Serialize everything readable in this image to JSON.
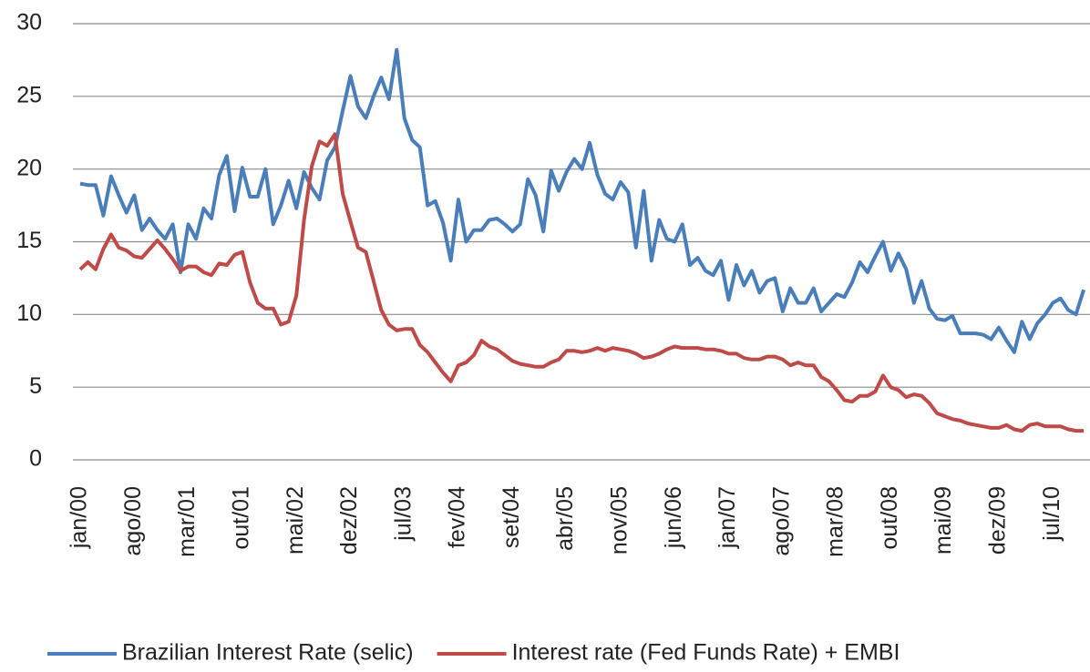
{
  "chart_data": {
    "type": "line",
    "categories": [
      "jan/00",
      null,
      null,
      null,
      null,
      null,
      null,
      "ago/00",
      null,
      null,
      null,
      null,
      null,
      null,
      "mar/01",
      null,
      null,
      null,
      null,
      null,
      null,
      "out/01",
      null,
      null,
      null,
      null,
      null,
      null,
      "mai/02",
      null,
      null,
      null,
      null,
      null,
      null,
      "dez/02",
      null,
      null,
      null,
      null,
      null,
      null,
      "jul/03",
      null,
      null,
      null,
      null,
      null,
      null,
      "fev/04",
      null,
      null,
      null,
      null,
      null,
      null,
      "set/04",
      null,
      null,
      null,
      null,
      null,
      null,
      "abr/05",
      null,
      null,
      null,
      null,
      null,
      null,
      "nov/05",
      null,
      null,
      null,
      null,
      null,
      null,
      "jun/06",
      null,
      null,
      null,
      null,
      null,
      null,
      "jan/07",
      null,
      null,
      null,
      null,
      null,
      null,
      "ago/07",
      null,
      null,
      null,
      null,
      null,
      null,
      "mar/08",
      null,
      null,
      null,
      null,
      null,
      null,
      "out/08",
      null,
      null,
      null,
      null,
      null,
      null,
      "mai/09",
      null,
      null,
      null,
      null,
      null,
      null,
      "dez/09",
      null,
      null,
      null,
      null,
      null,
      null,
      "jul/10",
      null,
      null,
      null,
      null
    ],
    "series": [
      {
        "name": "Brazilian Interest Rate (selic)",
        "color": "#4a7ebb",
        "values": [
          19,
          18.9,
          18.9,
          16.8,
          19.5,
          18.2,
          17,
          18.2,
          15.8,
          16.6,
          15.8,
          15.2,
          16.2,
          12.9,
          16.2,
          15.2,
          17.3,
          16.6,
          19.6,
          20.9,
          17.1,
          20.1,
          18.1,
          18.1,
          20.0,
          16.2,
          17.5,
          19.2,
          17.3,
          19.8,
          18.7,
          17.9,
          20.6,
          21.5,
          24,
          26.4,
          24.3,
          23.5,
          25,
          26.3,
          24.8,
          28.2,
          23.5,
          22,
          21.5,
          17.5,
          17.8,
          16.3,
          13.7,
          17.9,
          15,
          15.8,
          15.8,
          16.5,
          16.6,
          16.2,
          15.7,
          16.2,
          19.3,
          18.2,
          15.7,
          19.9,
          18.5,
          19.8,
          20.7,
          20,
          21.8,
          19.6,
          18.3,
          17.9,
          19.1,
          18.4,
          14.6,
          18.5,
          13.7,
          16.5,
          15.2,
          15,
          16.2,
          13.4,
          13.9,
          13,
          12.7,
          13.7,
          11,
          13.4,
          12,
          13,
          11.5,
          12.3,
          12.5,
          10.2,
          11.8,
          10.8,
          10.8,
          11.8,
          10.2,
          10.8,
          11.4,
          11.2,
          12.2,
          13.6,
          12.9,
          14,
          15,
          13,
          14.2,
          13.1,
          10.8,
          12.3,
          10.4,
          9.7,
          9.6,
          9.9,
          8.7,
          8.7,
          8.7,
          8.6,
          8.3,
          9.1,
          8.2,
          7.4,
          9.5,
          8.3,
          9.4,
          10,
          10.8,
          11.1,
          10.3,
          10.0,
          11.7
        ]
      },
      {
        "name": "Interest rate (Fed Funds Rate) + EMBI",
        "color": "#be4b48",
        "values": [
          13.1,
          13.6,
          13.1,
          14.5,
          15.5,
          14.6,
          14.4,
          14,
          13.9,
          14.5,
          15.1,
          14.5,
          13.8,
          13,
          13.3,
          13.3,
          12.9,
          12.7,
          13.5,
          13.4,
          14.1,
          14.3,
          12.2,
          10.8,
          10.4,
          10.4,
          9.3,
          9.5,
          11.3,
          16.5,
          20.2,
          21.9,
          21.6,
          22.4,
          18.3,
          16.4,
          14.6,
          14.3,
          12.3,
          10.3,
          9.3,
          8.9,
          9,
          9,
          7.9,
          7.4,
          6.7,
          6,
          5.4,
          6.5,
          6.7,
          7.2,
          8.2,
          7.8,
          7.6,
          7.2,
          6.8,
          6.6,
          6.5,
          6.4,
          6.4,
          6.7,
          6.9,
          7.5,
          7.5,
          7.4,
          7.5,
          7.7,
          7.5,
          7.7,
          7.6,
          7.5,
          7.3,
          7,
          7.1,
          7.3,
          7.6,
          7.8,
          7.7,
          7.7,
          7.7,
          7.6,
          7.6,
          7.5,
          7.3,
          7.3,
          7,
          6.9,
          6.9,
          7.1,
          7.1,
          6.9,
          6.5,
          6.7,
          6.5,
          6.5,
          5.7,
          5.4,
          4.8,
          4.1,
          4,
          4.4,
          4.4,
          4.7,
          5.8,
          5,
          4.8,
          4.3,
          4.5,
          4.4,
          3.9,
          3.2,
          3,
          2.8,
          2.7,
          2.5,
          2.4,
          2.3,
          2.2,
          2.2,
          2.4,
          2.1,
          2,
          2.4,
          2.5,
          2.3,
          2.3,
          2.3,
          2.1,
          2,
          2
        ]
      }
    ],
    "ylim": [
      0,
      30
    ],
    "yticks": [
      0,
      5,
      10,
      15,
      20,
      25,
      30
    ],
    "grid": true,
    "legend": "bottom"
  }
}
